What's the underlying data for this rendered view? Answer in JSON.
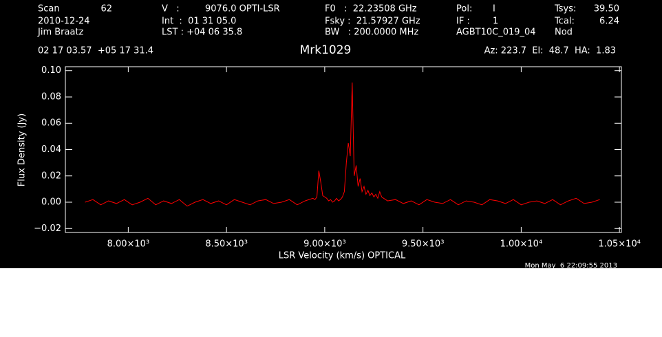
{
  "chart_data": {
    "type": "line",
    "title": "Mrk1029",
    "x_label": "LSR Velocity (km/s) OPTICAL",
    "y_label": "Flux Density (Jy)",
    "header": [
      "Scan",
      "62",
      "2010-12-24",
      "Jim Braatz",
      "V   :",
      "9076.0 OPTI-LSR",
      "Int  :  01 31 05.0",
      "LST : +04 06 35.8",
      "F0   :  22.23508 GHz",
      "Fsky :  21.57927 GHz",
      "BW   : 200.0000 MHz",
      "Pol:",
      "I",
      "IF :",
      "1",
      "AGBT10C_019_04",
      "Tsys:",
      "39.50",
      "Tcal:",
      "6.24",
      "Nod",
      "02 17 03.57  +05 17 31.4",
      "Az: 223.7  El:  48.7  HA:  1.83"
    ],
    "footer": "Mon May  6 22:09:55 2013",
    "color": "#ff0000",
    "x": [
      7780,
      7820,
      7860,
      7900,
      7940,
      7980,
      8020,
      8060,
      8100,
      8140,
      8180,
      8220,
      8260,
      8300,
      8340,
      8380,
      8420,
      8460,
      8500,
      8540,
      8580,
      8620,
      8660,
      8700,
      8740,
      8780,
      8820,
      8860,
      8900,
      8940,
      8950,
      8960,
      8970,
      8980,
      8990,
      9000,
      9010,
      9020,
      9030,
      9040,
      9050,
      9060,
      9070,
      9080,
      9090,
      9100,
      9110,
      9120,
      9130,
      9140,
      9150,
      9160,
      9170,
      9180,
      9190,
      9200,
      9210,
      9220,
      9230,
      9240,
      9250,
      9260,
      9270,
      9280,
      9290,
      9300,
      9310,
      9320,
      9360,
      9400,
      9440,
      9480,
      9520,
      9560,
      9600,
      9640,
      9680,
      9720,
      9760,
      9800,
      9840,
      9880,
      9920,
      9960,
      10000,
      10040,
      10080,
      10120,
      10160,
      10200,
      10240,
      10280,
      10320,
      10360,
      10400
    ],
    "values": [
      0.0,
      0.002,
      -0.002,
      0.001,
      -0.001,
      0.002,
      -0.002,
      0.0,
      0.003,
      -0.002,
      0.001,
      -0.001,
      0.002,
      -0.003,
      0.0,
      0.002,
      -0.001,
      0.001,
      -0.002,
      0.002,
      0.0,
      -0.002,
      0.001,
      0.002,
      -0.001,
      0.0,
      0.002,
      -0.002,
      0.001,
      0.003,
      0.002,
      0.004,
      0.024,
      0.015,
      0.005,
      0.004,
      0.003,
      0.001,
      0.002,
      0.0,
      0.001,
      0.003,
      0.001,
      0.002,
      0.004,
      0.008,
      0.03,
      0.045,
      0.035,
      0.091,
      0.02,
      0.028,
      0.012,
      0.018,
      0.008,
      0.012,
      0.006,
      0.009,
      0.005,
      0.007,
      0.004,
      0.006,
      0.003,
      0.008,
      0.004,
      0.003,
      0.002,
      0.001,
      0.002,
      -0.001,
      0.001,
      -0.002,
      0.002,
      0.0,
      -0.001,
      0.002,
      -0.002,
      0.001,
      0.0,
      -0.002,
      0.002,
      0.001,
      -0.001,
      0.002,
      -0.002,
      0.0,
      0.001,
      -0.001,
      0.002,
      -0.002,
      0.001,
      0.003,
      -0.001,
      0.0,
      0.002
    ],
    "xlim": [
      7680,
      10510
    ],
    "ylim": [
      -0.023,
      0.103
    ],
    "xticks": [
      {
        "value": 8000,
        "label": "8.00×10³"
      },
      {
        "value": 8500,
        "label": "8.50×10³"
      },
      {
        "value": 9000,
        "label": "9.00×10³"
      },
      {
        "value": 9500,
        "label": "9.50×10³"
      },
      {
        "value": 10000,
        "label": "1.00×10⁴"
      },
      {
        "value": 10500,
        "label": "1.05×10⁴"
      }
    ],
    "yticks": [
      {
        "value": -0.02,
        "label": "−0.02"
      },
      {
        "value": 0,
        "label": "0.00"
      },
      {
        "value": 0.02,
        "label": "0.02"
      },
      {
        "value": 0.04,
        "label": "0.04"
      },
      {
        "value": 0.06,
        "label": "0.06"
      },
      {
        "value": 0.08,
        "label": "0.08"
      },
      {
        "value": 0.1,
        "label": "0.10"
      }
    ]
  }
}
